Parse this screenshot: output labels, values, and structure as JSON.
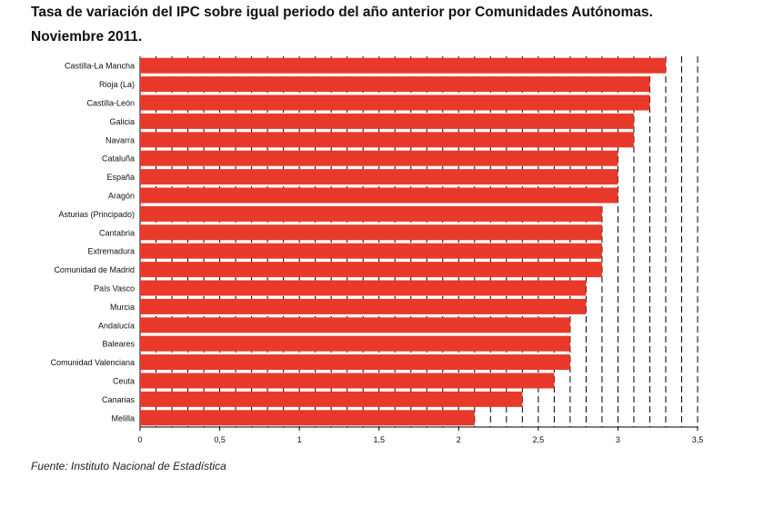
{
  "title_line1": "Tasa de variación del IPC sobre igual periodo del año anterior por Comunidades Autónomas.",
  "title_line2": "Noviembre 2011.",
  "source": "Fuente: Instituto Nacional de Estadística",
  "chart_data": {
    "type": "bar",
    "orientation": "horizontal",
    "categories": [
      "Castilla-La Mancha",
      "Rioja (La)",
      "Castilla-León",
      "Galicia",
      "Navarra",
      "Cataluña",
      "España",
      "Aragón",
      "Asturias (Principado)",
      "Cantabria",
      "Extremadura",
      "Comunidad de Madrid",
      "País Vasco",
      "Murcia",
      "Andalucía",
      "Baleares",
      "Comunidad Valenciana",
      "Ceuta",
      "Canarias",
      "Melilla"
    ],
    "values": [
      3.3,
      3.2,
      3.2,
      3.1,
      3.1,
      3.0,
      3.0,
      3.0,
      2.9,
      2.9,
      2.9,
      2.9,
      2.8,
      2.8,
      2.7,
      2.7,
      2.7,
      2.6,
      2.4,
      2.1
    ],
    "xlim": [
      0,
      3.5
    ],
    "xticks": [
      "0",
      "0,5",
      "1",
      "1,5",
      "2",
      "2,5",
      "3",
      "3,5"
    ],
    "grid": "dashed vertical lines every 0.1",
    "bar_color": "#e8392a",
    "title": "Tasa de variación del IPC sobre igual periodo del año anterior por Comunidades Autónomas. Noviembre 2011.",
    "xlabel": "",
    "ylabel": ""
  }
}
